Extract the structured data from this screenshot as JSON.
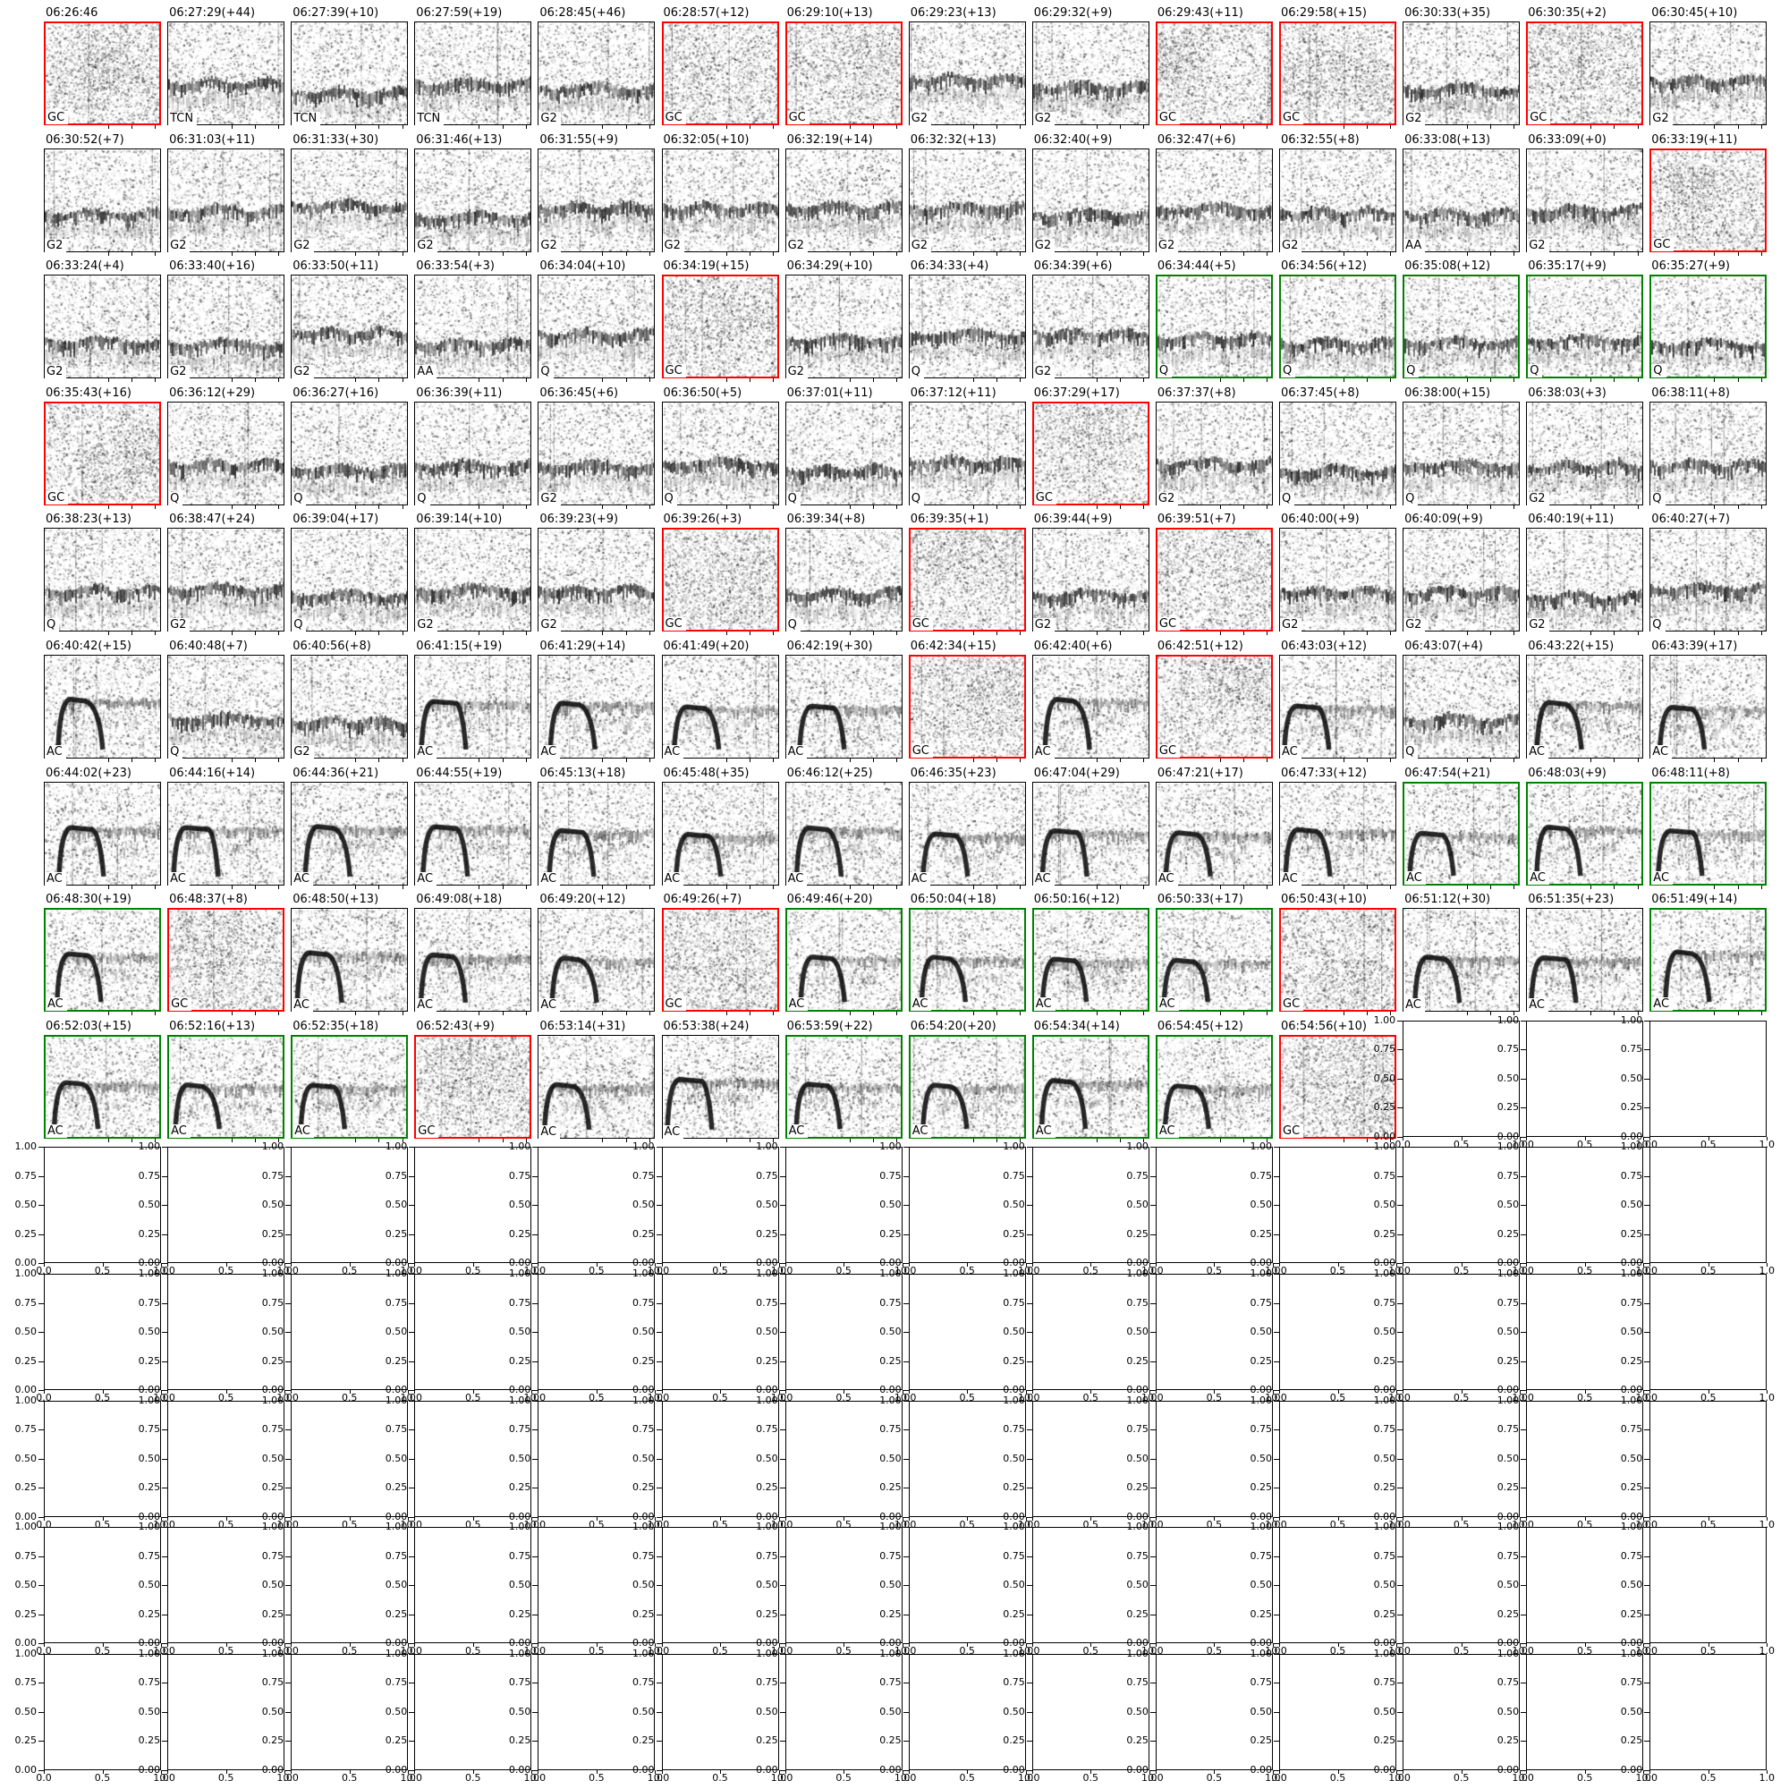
{
  "chart_data": {
    "type": "heatmap",
    "title": "",
    "description": "14x14 matplotlib-style grid: 123 grayscale spectrogram thumbnails titled with clip time HH:MM:SS(+seconds) and a classifier code in the lower-left corner; some panels are outlined red or green; remaining 73 axes are empty placeholders with 0.00-1.00 y ticks and 0.0-1.0 x ticks.",
    "grid": {
      "columns": 14,
      "rows": 14,
      "spectrogram_panels": 123,
      "empty_panels": 73
    },
    "classifier_codes": [
      "GC",
      "TCN",
      "G2",
      "AA",
      "Q",
      "AC"
    ],
    "border_colors": {
      "default": "#000000",
      "red": "#ff0000",
      "green": "#008000"
    },
    "empty_axes": {
      "yticks": [
        "1.00",
        "0.75",
        "0.50",
        "0.25",
        "0.00"
      ],
      "xticks": [
        "0.0",
        "0.5",
        "1.0"
      ]
    },
    "panels": [
      {
        "time": "06:26:46",
        "label": "GC",
        "border": "red"
      },
      {
        "time": "06:27:29(+44)",
        "label": "TCN",
        "border": "black"
      },
      {
        "time": "06:27:39(+10)",
        "label": "TCN",
        "border": "black"
      },
      {
        "time": "06:27:59(+19)",
        "label": "TCN",
        "border": "black"
      },
      {
        "time": "06:28:45(+46)",
        "label": "G2",
        "border": "black"
      },
      {
        "time": "06:28:57(+12)",
        "label": "GC",
        "border": "red"
      },
      {
        "time": "06:29:10(+13)",
        "label": "GC",
        "border": "red"
      },
      {
        "time": "06:29:23(+13)",
        "label": "G2",
        "border": "black"
      },
      {
        "time": "06:29:32(+9)",
        "label": "G2",
        "border": "black"
      },
      {
        "time": "06:29:43(+11)",
        "label": "GC",
        "border": "red"
      },
      {
        "time": "06:29:58(+15)",
        "label": "GC",
        "border": "red"
      },
      {
        "time": "06:30:33(+35)",
        "label": "G2",
        "border": "black"
      },
      {
        "time": "06:30:35(+2)",
        "label": "GC",
        "border": "red"
      },
      {
        "time": "06:30:45(+10)",
        "label": "G2",
        "border": "black"
      },
      {
        "time": "06:30:52(+7)",
        "label": "G2",
        "border": "black"
      },
      {
        "time": "06:31:03(+11)",
        "label": "G2",
        "border": "black"
      },
      {
        "time": "06:31:33(+30)",
        "label": "G2",
        "border": "black"
      },
      {
        "time": "06:31:46(+13)",
        "label": "G2",
        "border": "black"
      },
      {
        "time": "06:31:55(+9)",
        "label": "G2",
        "border": "black"
      },
      {
        "time": "06:32:05(+10)",
        "label": "G2",
        "border": "black"
      },
      {
        "time": "06:32:19(+14)",
        "label": "G2",
        "border": "black"
      },
      {
        "time": "06:32:32(+13)",
        "label": "G2",
        "border": "black"
      },
      {
        "time": "06:32:40(+9)",
        "label": "G2",
        "border": "black"
      },
      {
        "time": "06:32:47(+6)",
        "label": "G2",
        "border": "black"
      },
      {
        "time": "06:32:55(+8)",
        "label": "G2",
        "border": "black"
      },
      {
        "time": "06:33:08(+13)",
        "label": "AA",
        "border": "black"
      },
      {
        "time": "06:33:09(+0)",
        "label": "G2",
        "border": "black"
      },
      {
        "time": "06:33:19(+11)",
        "label": "GC",
        "border": "red"
      },
      {
        "time": "06:33:24(+4)",
        "label": "G2",
        "border": "black"
      },
      {
        "time": "06:33:40(+16)",
        "label": "G2",
        "border": "black"
      },
      {
        "time": "06:33:50(+11)",
        "label": "G2",
        "border": "black"
      },
      {
        "time": "06:33:54(+3)",
        "label": "AA",
        "border": "black"
      },
      {
        "time": "06:34:04(+10)",
        "label": "Q",
        "border": "black"
      },
      {
        "time": "06:34:19(+15)",
        "label": "GC",
        "border": "red"
      },
      {
        "time": "06:34:29(+10)",
        "label": "G2",
        "border": "black"
      },
      {
        "time": "06:34:33(+4)",
        "label": "Q",
        "border": "black"
      },
      {
        "time": "06:34:39(+6)",
        "label": "G2",
        "border": "black"
      },
      {
        "time": "06:34:44(+5)",
        "label": "Q",
        "border": "green"
      },
      {
        "time": "06:34:56(+12)",
        "label": "Q",
        "border": "green"
      },
      {
        "time": "06:35:08(+12)",
        "label": "Q",
        "border": "green"
      },
      {
        "time": "06:35:17(+9)",
        "label": "Q",
        "border": "green"
      },
      {
        "time": "06:35:27(+9)",
        "label": "Q",
        "border": "green"
      },
      {
        "time": "06:35:43(+16)",
        "label": "GC",
        "border": "red"
      },
      {
        "time": "06:36:12(+29)",
        "label": "Q",
        "border": "black"
      },
      {
        "time": "06:36:27(+16)",
        "label": "Q",
        "border": "black"
      },
      {
        "time": "06:36:39(+11)",
        "label": "Q",
        "border": "black"
      },
      {
        "time": "06:36:45(+6)",
        "label": "G2",
        "border": "black"
      },
      {
        "time": "06:36:50(+5)",
        "label": "Q",
        "border": "black"
      },
      {
        "time": "06:37:01(+11)",
        "label": "Q",
        "border": "black"
      },
      {
        "time": "06:37:12(+11)",
        "label": "Q",
        "border": "black"
      },
      {
        "time": "06:37:29(+17)",
        "label": "GC",
        "border": "red"
      },
      {
        "time": "06:37:37(+8)",
        "label": "G2",
        "border": "black"
      },
      {
        "time": "06:37:45(+8)",
        "label": "Q",
        "border": "black"
      },
      {
        "time": "06:38:00(+15)",
        "label": "Q",
        "border": "black"
      },
      {
        "time": "06:38:03(+3)",
        "label": "G2",
        "border": "black"
      },
      {
        "time": "06:38:11(+8)",
        "label": "Q",
        "border": "black"
      },
      {
        "time": "06:38:23(+13)",
        "label": "Q",
        "border": "black"
      },
      {
        "time": "06:38:47(+24)",
        "label": "G2",
        "border": "black"
      },
      {
        "time": "06:39:04(+17)",
        "label": "Q",
        "border": "black"
      },
      {
        "time": "06:39:14(+10)",
        "label": "G2",
        "border": "black"
      },
      {
        "time": "06:39:23(+9)",
        "label": "G2",
        "border": "black"
      },
      {
        "time": "06:39:26(+3)",
        "label": "GC",
        "border": "red"
      },
      {
        "time": "06:39:34(+8)",
        "label": "Q",
        "border": "black"
      },
      {
        "time": "06:39:35(+1)",
        "label": "GC",
        "border": "red"
      },
      {
        "time": "06:39:44(+9)",
        "label": "G2",
        "border": "black"
      },
      {
        "time": "06:39:51(+7)",
        "label": "GC",
        "border": "red"
      },
      {
        "time": "06:40:00(+9)",
        "label": "G2",
        "border": "black"
      },
      {
        "time": "06:40:09(+9)",
        "label": "G2",
        "border": "black"
      },
      {
        "time": "06:40:19(+11)",
        "label": "G2",
        "border": "black"
      },
      {
        "time": "06:40:27(+7)",
        "label": "Q",
        "border": "black"
      },
      {
        "time": "06:40:42(+15)",
        "label": "AC",
        "border": "black"
      },
      {
        "time": "06:40:48(+7)",
        "label": "Q",
        "border": "black"
      },
      {
        "time": "06:40:56(+8)",
        "label": "G2",
        "border": "black"
      },
      {
        "time": "06:41:15(+19)",
        "label": "AC",
        "border": "black"
      },
      {
        "time": "06:41:29(+14)",
        "label": "AC",
        "border": "black"
      },
      {
        "time": "06:41:49(+20)",
        "label": "AC",
        "border": "black"
      },
      {
        "time": "06:42:19(+30)",
        "label": "AC",
        "border": "black"
      },
      {
        "time": "06:42:34(+15)",
        "label": "GC",
        "border": "red"
      },
      {
        "time": "06:42:40(+6)",
        "label": "AC",
        "border": "black"
      },
      {
        "time": "06:42:51(+12)",
        "label": "GC",
        "border": "red"
      },
      {
        "time": "06:43:03(+12)",
        "label": "AC",
        "border": "black"
      },
      {
        "time": "06:43:07(+4)",
        "label": "Q",
        "border": "black"
      },
      {
        "time": "06:43:22(+15)",
        "label": "AC",
        "border": "black"
      },
      {
        "time": "06:43:39(+17)",
        "label": "AC",
        "border": "black"
      },
      {
        "time": "06:44:02(+23)",
        "label": "AC",
        "border": "black"
      },
      {
        "time": "06:44:16(+14)",
        "label": "AC",
        "border": "black"
      },
      {
        "time": "06:44:36(+21)",
        "label": "AC",
        "border": "black"
      },
      {
        "time": "06:44:55(+19)",
        "label": "AC",
        "border": "black"
      },
      {
        "time": "06:45:13(+18)",
        "label": "AC",
        "border": "black"
      },
      {
        "time": "06:45:48(+35)",
        "label": "AC",
        "border": "black"
      },
      {
        "time": "06:46:12(+25)",
        "label": "AC",
        "border": "black"
      },
      {
        "time": "06:46:35(+23)",
        "label": "AC",
        "border": "black"
      },
      {
        "time": "06:47:04(+29)",
        "label": "AC",
        "border": "black"
      },
      {
        "time": "06:47:21(+17)",
        "label": "AC",
        "border": "black"
      },
      {
        "time": "06:47:33(+12)",
        "label": "AC",
        "border": "black"
      },
      {
        "time": "06:47:54(+21)",
        "label": "AC",
        "border": "green"
      },
      {
        "time": "06:48:03(+9)",
        "label": "AC",
        "border": "green"
      },
      {
        "time": "06:48:11(+8)",
        "label": "AC",
        "border": "green"
      },
      {
        "time": "06:48:30(+19)",
        "label": "AC",
        "border": "green"
      },
      {
        "time": "06:48:37(+8)",
        "label": "GC",
        "border": "red"
      },
      {
        "time": "06:48:50(+13)",
        "label": "AC",
        "border": "black"
      },
      {
        "time": "06:49:08(+18)",
        "label": "AC",
        "border": "black"
      },
      {
        "time": "06:49:20(+12)",
        "label": "AC",
        "border": "black"
      },
      {
        "time": "06:49:26(+7)",
        "label": "GC",
        "border": "red"
      },
      {
        "time": "06:49:46(+20)",
        "label": "AC",
        "border": "green"
      },
      {
        "time": "06:50:04(+18)",
        "label": "AC",
        "border": "green"
      },
      {
        "time": "06:50:16(+12)",
        "label": "AC",
        "border": "green"
      },
      {
        "time": "06:50:33(+17)",
        "label": "AC",
        "border": "green"
      },
      {
        "time": "06:50:43(+10)",
        "label": "GC",
        "border": "red"
      },
      {
        "time": "06:51:12(+30)",
        "label": "AC",
        "border": "black"
      },
      {
        "time": "06:51:35(+23)",
        "label": "AC",
        "border": "black"
      },
      {
        "time": "06:51:49(+14)",
        "label": "AC",
        "border": "green"
      },
      {
        "time": "06:52:03(+15)",
        "label": "AC",
        "border": "green"
      },
      {
        "time": "06:52:16(+13)",
        "label": "AC",
        "border": "green"
      },
      {
        "time": "06:52:35(+18)",
        "label": "AC",
        "border": "green"
      },
      {
        "time": "06:52:43(+9)",
        "label": "GC",
        "border": "red"
      },
      {
        "time": "06:53:14(+31)",
        "label": "AC",
        "border": "black"
      },
      {
        "time": "06:53:38(+24)",
        "label": "AC",
        "border": "black"
      },
      {
        "time": "06:53:59(+22)",
        "label": "AC",
        "border": "green"
      },
      {
        "time": "06:54:20(+20)",
        "label": "AC",
        "border": "green"
      },
      {
        "time": "06:54:34(+14)",
        "label": "AC",
        "border": "green"
      },
      {
        "time": "06:54:45(+12)",
        "label": "AC",
        "border": "green"
      },
      {
        "time": "06:54:56(+10)",
        "label": "GC",
        "border": "red"
      }
    ]
  }
}
